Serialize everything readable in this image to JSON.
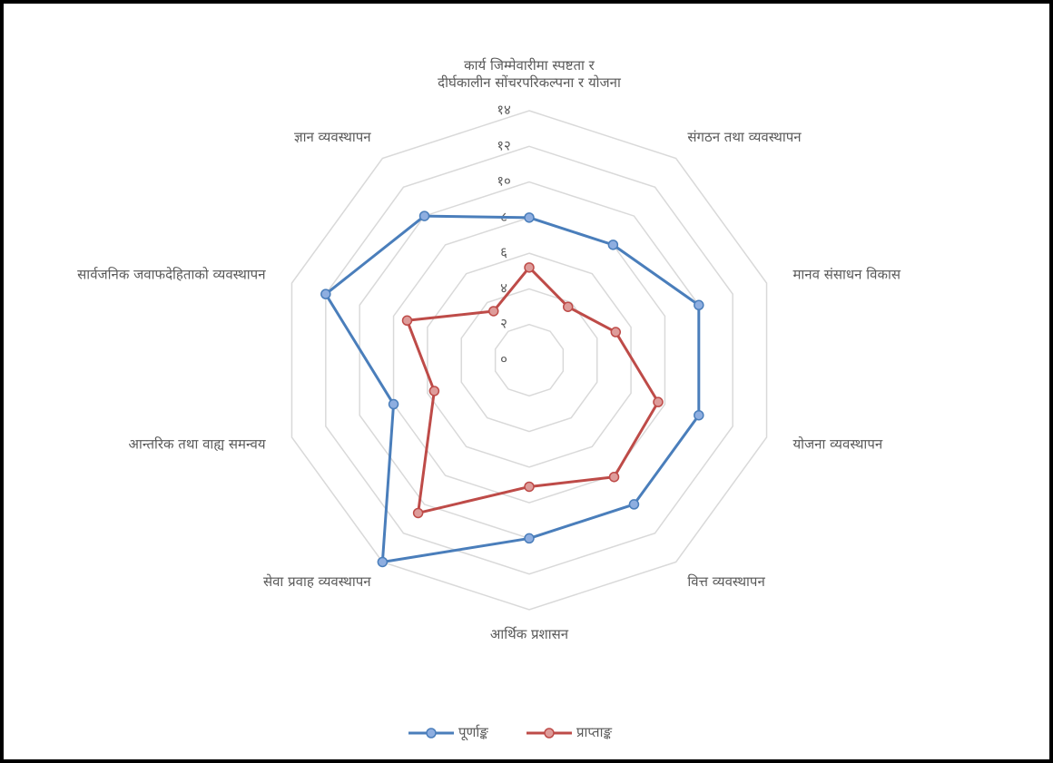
{
  "chart_data": {
    "type": "radar",
    "categories": [
      "कार्य जिम्मेवारीमा स्पष्टता र\nदीर्घकालीन सोंचरपरिकल्पना र योजना",
      "संगठन तथा व्यवस्थापन",
      "मानव संसाधन विकास",
      "योजना व्यवस्थापन",
      "वित्त व्यवस्थापन",
      "आर्थिक प्रशासन",
      "सेवा प्रवाह व्यवस्थापन",
      "आन्तरिक तथा वाह्य समन्वय",
      "सार्वजनिक जवाफदेहिताको व्यवस्थापन",
      "ज्ञान व्यवस्थापन"
    ],
    "series": [
      {
        "name": "पूर्णाङ्क",
        "color": "#4a7ebb",
        "marker_color": "#8eaee0",
        "values": [
          8,
          8,
          10,
          10,
          10,
          10,
          14,
          8,
          12,
          10
        ]
      },
      {
        "name": "प्राप्ताङ्क",
        "color": "#be4b48",
        "marker_color": "#de9c9a",
        "values": [
          5.2,
          3.7,
          5.1,
          7.6,
          8.1,
          7.1,
          10.6,
          5.6,
          7.2,
          3.4
        ]
      }
    ],
    "ylim": [
      0,
      14
    ],
    "yticks": [
      {
        "value": 0,
        "label": "०"
      },
      {
        "value": 2,
        "label": "२"
      },
      {
        "value": 4,
        "label": "४"
      },
      {
        "value": 6,
        "label": "६"
      },
      {
        "value": 8,
        "label": "८"
      },
      {
        "value": 10,
        "label": "१०"
      },
      {
        "value": 12,
        "label": "१२"
      },
      {
        "value": 14,
        "label": "१४"
      }
    ],
    "grid": true,
    "legend": "bottom"
  }
}
